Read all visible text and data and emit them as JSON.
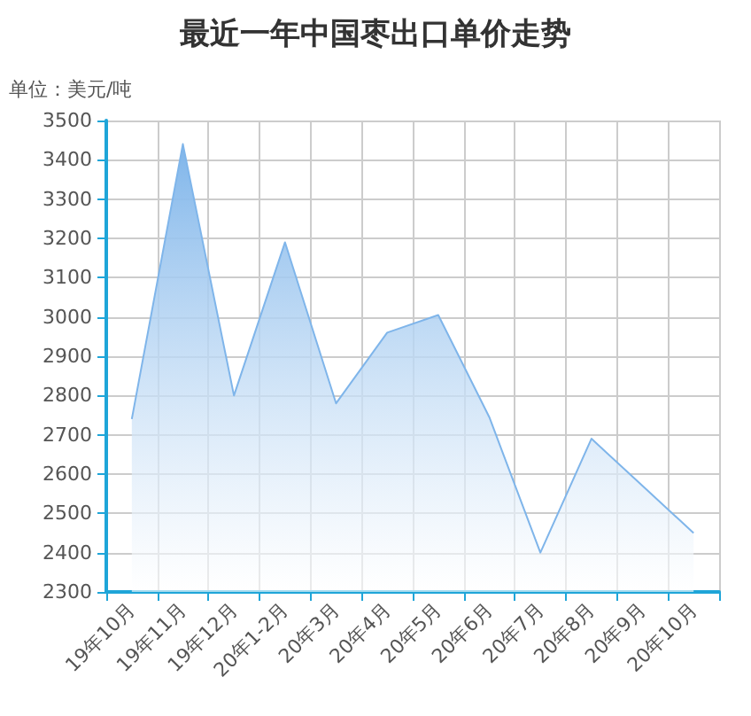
{
  "chart_data": {
    "type": "area",
    "title": "最近一年中国枣出口单价走势",
    "ylabel": "单位：美元/吨",
    "categories": [
      "19年10月",
      "19年11月",
      "19年12月",
      "20年1-2月",
      "20年3月",
      "20年4月",
      "20年5月",
      "20年6月",
      "20年7月",
      "20年8月",
      "20年9月",
      "20年10月"
    ],
    "series": [
      {
        "color": "#7fb5ea",
        "values": [
          2740,
          3440,
          2800,
          3190,
          2780,
          2960,
          3005,
          2745,
          2400,
          2690,
          2570,
          2450
        ]
      }
    ],
    "ylim": [
      2300,
      3500
    ],
    "yticks": [
      2300,
      2400,
      2500,
      2600,
      2700,
      2800,
      2900,
      3000,
      3100,
      3200,
      3300,
      3400,
      3500
    ],
    "grid": true,
    "marker": "none",
    "line_style": "solid"
  }
}
